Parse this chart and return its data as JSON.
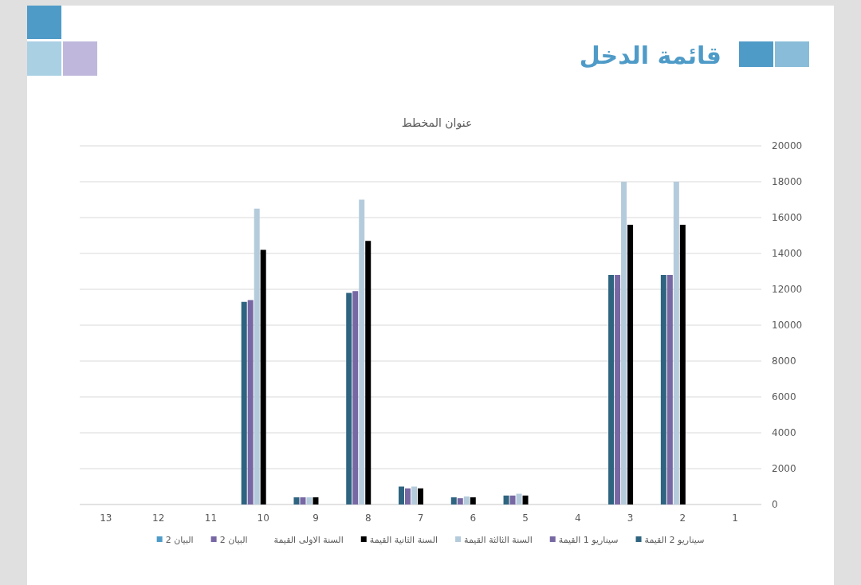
{
  "chart_data": {
    "type": "bar",
    "title": "قائمة الدخل",
    "subtitle": "عنوان المخطط",
    "categories": [
      "13",
      "12",
      "11",
      "10",
      "9",
      "8",
      "7",
      "6",
      "5",
      "4",
      "3",
      "2",
      "1"
    ],
    "series": [
      {
        "name": "سيناريو 2 القيمة",
        "color": "#2e6480",
        "values": [
          null,
          null,
          null,
          11300,
          400,
          11800,
          1000,
          400,
          500,
          null,
          12800,
          12800,
          null
        ]
      },
      {
        "name": "سيناريو 1 القيمة",
        "color": "#7767a3",
        "values": [
          null,
          null,
          null,
          11400,
          400,
          11900,
          900,
          350,
          500,
          null,
          12800,
          12800,
          null
        ]
      },
      {
        "name": "السنة الثالثة القيمة",
        "color": "#b4cbdc",
        "values": [
          null,
          null,
          null,
          16500,
          400,
          17000,
          1000,
          450,
          600,
          null,
          18000,
          18000,
          null
        ]
      },
      {
        "name": "السنة الثانية القيمة",
        "color": "#000000",
        "values": [
          null,
          null,
          null,
          14200,
          400,
          14700,
          900,
          400,
          500,
          null,
          15600,
          15600,
          null
        ]
      },
      {
        "name": "السنة الاولى القيمة",
        "values": [
          null,
          null,
          null,
          null,
          null,
          null,
          null,
          null,
          null,
          null,
          null,
          null,
          null
        ]
      },
      {
        "name": "2 البيان",
        "color": "#7767a3",
        "values": [
          null,
          null,
          null,
          null,
          null,
          null,
          null,
          null,
          null,
          null,
          null,
          null,
          null
        ]
      },
      {
        "name": "2 البيان",
        "color": "#4f9bc8",
        "values": [
          null,
          null,
          null,
          null,
          null,
          null,
          null,
          null,
          null,
          null,
          null,
          null,
          null
        ]
      }
    ],
    "ylim": [
      0,
      20000
    ],
    "yticks": [
      0,
      2000,
      4000,
      6000,
      8000,
      10000,
      12000,
      14000,
      16000,
      18000,
      20000
    ],
    "grid": "y",
    "legend": "bottom"
  }
}
